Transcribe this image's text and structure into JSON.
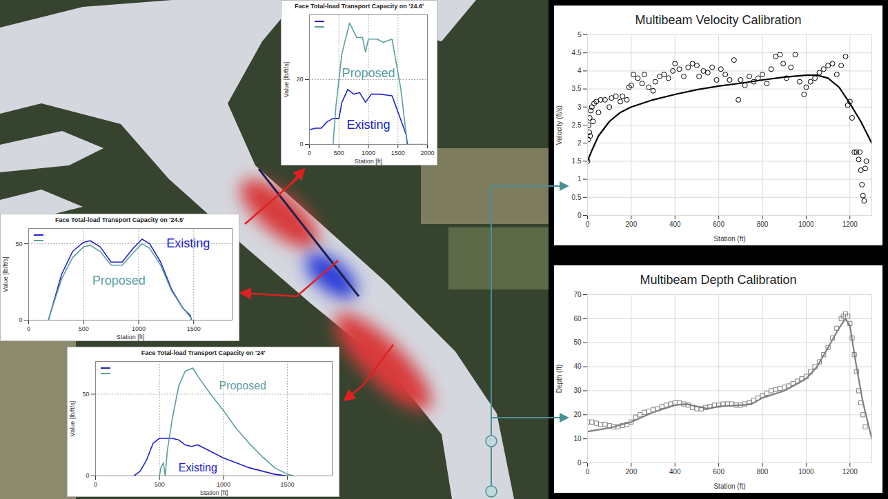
{
  "chart_data": [
    {
      "type": "line",
      "title": "Face Total-load Transport Capacity on '24.6'",
      "xlabel": "Station [ft]",
      "ylabel": "Value [lb/ft/s]",
      "xlim": [
        0,
        2000
      ],
      "ylim": [
        0,
        40
      ],
      "xticks": [
        0,
        500,
        1000,
        1500,
        2000
      ],
      "yticks": [
        0,
        20
      ],
      "grid": true,
      "legend": "top-left",
      "series": [
        {
          "color": "#2020d0",
          "x": [
            0,
            100,
            200,
            300,
            400,
            500,
            550,
            650,
            750,
            850,
            950,
            1050,
            1200,
            1400,
            1500,
            1640,
            1660
          ],
          "values": [
            4.5,
            5,
            5,
            7,
            8,
            8,
            13,
            17,
            15.5,
            16,
            13,
            15.5,
            15.5,
            15,
            10,
            3,
            0
          ]
        },
        {
          "color": "#5a9ea0",
          "x": [
            400,
            450,
            550,
            680,
            800,
            900,
            950,
            1000,
            1150,
            1250,
            1400,
            1550,
            1640,
            1650,
            2000
          ],
          "values": [
            0,
            12,
            28,
            37.5,
            33,
            33,
            28.5,
            32.5,
            32.5,
            31.5,
            32.5,
            17,
            3,
            0,
            0
          ]
        }
      ],
      "annotations": [
        {
          "text": "Proposed",
          "x": 1000,
          "y": 22,
          "color": "#5a9ea0"
        },
        {
          "text": "Existing",
          "x": 1000,
          "y": 6,
          "color": "#2020d0"
        }
      ]
    },
    {
      "type": "line",
      "title": "Face Total-load Transport Capacity on '24.5'",
      "xlabel": "Station [ft]",
      "ylabel": "Value [lb/ft/s]",
      "xlim": [
        0,
        1850
      ],
      "ylim": [
        0,
        60
      ],
      "xticks": [
        0,
        500,
        1000,
        1500
      ],
      "yticks": [
        0,
        50
      ],
      "grid": true,
      "legend": "top-left",
      "series": [
        {
          "color": "#2020d0",
          "x": [
            180,
            200,
            300,
            400,
            500,
            560,
            650,
            750,
            850,
            950,
            1030,
            1100,
            1200,
            1300,
            1400,
            1470,
            1480
          ],
          "values": [
            0,
            5,
            30,
            45,
            51,
            52,
            48,
            38,
            38,
            47,
            53,
            50,
            38,
            20,
            8,
            3,
            0
          ]
        },
        {
          "color": "#5a9ea0",
          "x": [
            180,
            200,
            300,
            400,
            500,
            560,
            650,
            750,
            850,
            950,
            1030,
            1100,
            1200,
            1300,
            1400,
            1470,
            1480
          ],
          "values": [
            0,
            5,
            27,
            41,
            48,
            49,
            45,
            36,
            36,
            44,
            50,
            47,
            36,
            19,
            8,
            2,
            0
          ]
        }
      ],
      "annotations": [
        {
          "text": "Existing",
          "x": 1450,
          "y": 50,
          "color": "#2020d0"
        },
        {
          "text": "Proposed",
          "x": 820,
          "y": 26,
          "color": "#5a9ea0"
        }
      ]
    },
    {
      "type": "line",
      "title": "Face Total-load Transport Capacity on '24'",
      "xlabel": "Station [ft]",
      "ylabel": "Value [lb/ft/s]",
      "xlim": [
        0,
        1850
      ],
      "ylim": [
        0,
        70
      ],
      "xticks": [
        0,
        500,
        1000,
        1500
      ],
      "yticks": [
        0,
        50
      ],
      "grid": true,
      "legend": "top-left",
      "series": [
        {
          "color": "#2020d0",
          "x": [
            300,
            350,
            400,
            450,
            500,
            600,
            650,
            700,
            750,
            800,
            900,
            1000,
            1100,
            1200,
            1300,
            1400,
            1500
          ],
          "values": [
            0,
            3,
            10,
            20,
            23,
            23,
            22,
            19,
            18,
            19,
            15,
            11,
            8,
            5,
            3,
            1,
            0
          ]
        },
        {
          "color": "#5a9ea0",
          "x": [
            500,
            510,
            530,
            545,
            560,
            600,
            650,
            700,
            760,
            800,
            900,
            1000,
            1100,
            1200,
            1300,
            1400,
            1500,
            1550
          ],
          "values": [
            0,
            5,
            8,
            0,
            15,
            35,
            55,
            64,
            66,
            61,
            50,
            40,
            29,
            20,
            12,
            5,
            1,
            0
          ]
        }
      ],
      "annotations": [
        {
          "text": "Proposed",
          "x": 1150,
          "y": 55,
          "color": "#5a9ea0"
        },
        {
          "text": "Existing",
          "x": 800,
          "y": 5,
          "color": "#2020d0"
        }
      ]
    },
    {
      "type": "scatter",
      "title": "Multibeam Velocity Calibration",
      "xlabel": "Station (ft)",
      "ylabel": "Velocity (ft/s)",
      "xlim": [
        0,
        1300
      ],
      "ylim": [
        0,
        5
      ],
      "xticks": [
        0,
        200,
        400,
        600,
        800,
        1000,
        1200
      ],
      "yticks": [
        0,
        0.5,
        1,
        1.5,
        2,
        2.5,
        3,
        3.5,
        4,
        4.5,
        5
      ],
      "grid": true,
      "series": [
        {
          "type": "scatter",
          "marker": "circle",
          "color": "#000000",
          "x": [
            0,
            3,
            5,
            8,
            10,
            12,
            15,
            20,
            25,
            30,
            40,
            50,
            60,
            80,
            100,
            110,
            130,
            150,
            160,
            180,
            190,
            200,
            210,
            230,
            250,
            260,
            280,
            300,
            310,
            330,
            350,
            370,
            390,
            400,
            420,
            440,
            460,
            480,
            500,
            510,
            530,
            550,
            570,
            590,
            610,
            630,
            650,
            670,
            690,
            700,
            720,
            740,
            760,
            780,
            800,
            820,
            840,
            860,
            880,
            895,
            910,
            930,
            950,
            970,
            990,
            1000,
            1020,
            1040,
            1060,
            1080,
            1100,
            1120,
            1140,
            1160,
            1180,
            1190,
            1200,
            1210,
            1220,
            1230,
            1240,
            1245,
            1250,
            1255,
            1260,
            1265,
            1270,
            1275
          ],
          "values": [
            1.5,
            2.1,
            2.5,
            2.3,
            2.7,
            2.2,
            2.9,
            3,
            2.6,
            3.1,
            3.15,
            2.85,
            3.2,
            3.2,
            3,
            3.25,
            3.3,
            3.15,
            3.3,
            3.2,
            3.55,
            3.6,
            3.9,
            3.8,
            3.65,
            3.9,
            3.55,
            3.45,
            3.7,
            3.85,
            3.9,
            3.8,
            4,
            4.2,
            4.05,
            3.85,
            4.1,
            4.2,
            4.15,
            3.85,
            4,
            3.95,
            4.1,
            3.75,
            4.05,
            3.9,
            3.75,
            4.3,
            3.2,
            3.75,
            3.6,
            3.85,
            3.7,
            3.8,
            3.9,
            3.65,
            4.05,
            4.4,
            4.45,
            4.2,
            3.8,
            4.1,
            4.45,
            3.7,
            3.35,
            3.55,
            3.7,
            3.8,
            3.95,
            4.05,
            4.15,
            4.2,
            3.9,
            4.15,
            4.4,
            3.05,
            3.15,
            2.7,
            1.75,
            1.75,
            1.55,
            1.75,
            1.25,
            0.85,
            0.55,
            0.4,
            1.3,
            1.5
          ]
        },
        {
          "type": "line",
          "line_style": "solid",
          "color": "#000000",
          "x": [
            0,
            20,
            50,
            100,
            150,
            200,
            300,
            400,
            500,
            600,
            700,
            800,
            900,
            1000,
            1050,
            1100,
            1150,
            1200,
            1250,
            1300
          ],
          "values": [
            1.5,
            1.8,
            2.2,
            2.6,
            2.85,
            3,
            3.2,
            3.35,
            3.48,
            3.58,
            3.66,
            3.75,
            3.83,
            3.88,
            3.88,
            3.8,
            3.55,
            3.1,
            2.6,
            2
          ]
        }
      ]
    },
    {
      "type": "scatter",
      "title": "Multibeam Depth Calibration",
      "xlabel": "Station (ft)",
      "ylabel": "Depth (ft)",
      "xlim": [
        0,
        1300
      ],
      "ylim": [
        0,
        70
      ],
      "xticks": [
        0,
        200,
        400,
        600,
        800,
        1000,
        1200
      ],
      "yticks": [
        0,
        10,
        20,
        30,
        40,
        50,
        60,
        70
      ],
      "grid": true,
      "series": [
        {
          "type": "scatter",
          "marker": "square",
          "color": "#7f7f7f",
          "x": [
            0,
            20,
            40,
            60,
            80,
            100,
            120,
            140,
            160,
            180,
            200,
            220,
            240,
            260,
            280,
            300,
            320,
            340,
            360,
            380,
            400,
            420,
            440,
            460,
            480,
            500,
            520,
            540,
            560,
            580,
            600,
            620,
            640,
            660,
            680,
            700,
            720,
            740,
            760,
            780,
            800,
            820,
            840,
            860,
            880,
            900,
            920,
            940,
            960,
            980,
            1000,
            1020,
            1040,
            1060,
            1080,
            1100,
            1120,
            1140,
            1160,
            1170,
            1180,
            1190,
            1200,
            1210,
            1220,
            1230,
            1240,
            1250,
            1260,
            1270
          ],
          "values": [
            17,
            17,
            16.5,
            16,
            16,
            15.5,
            15,
            15,
            15.5,
            16,
            17,
            19,
            20,
            21,
            21.5,
            22,
            22.5,
            23.5,
            24,
            24.5,
            25,
            25,
            24.5,
            24,
            23,
            22.5,
            22.5,
            23,
            23.5,
            24,
            24,
            24.5,
            24.5,
            24.5,
            24,
            24,
            24.5,
            25,
            26,
            27,
            28,
            29,
            30,
            30.5,
            31,
            31.5,
            32,
            33,
            34,
            35,
            36,
            38,
            40,
            42,
            45,
            48,
            52,
            56,
            60,
            61,
            62,
            61,
            58,
            52,
            45,
            38,
            30,
            25,
            20,
            15
          ]
        },
        {
          "type": "line",
          "line_style": "solid",
          "color": "#7f7f7f",
          "x": [
            0,
            100,
            200,
            300,
            400,
            450,
            500,
            550,
            600,
            700,
            750,
            800,
            900,
            1000,
            1050,
            1100,
            1150,
            1180,
            1200,
            1230,
            1260,
            1300
          ],
          "values": [
            13,
            14.5,
            17,
            21,
            24,
            24.5,
            23.5,
            22.5,
            23.5,
            24,
            24.5,
            27,
            30,
            35,
            40,
            48,
            56,
            60,
            57,
            40,
            25,
            10
          ]
        }
      ]
    }
  ]
}
